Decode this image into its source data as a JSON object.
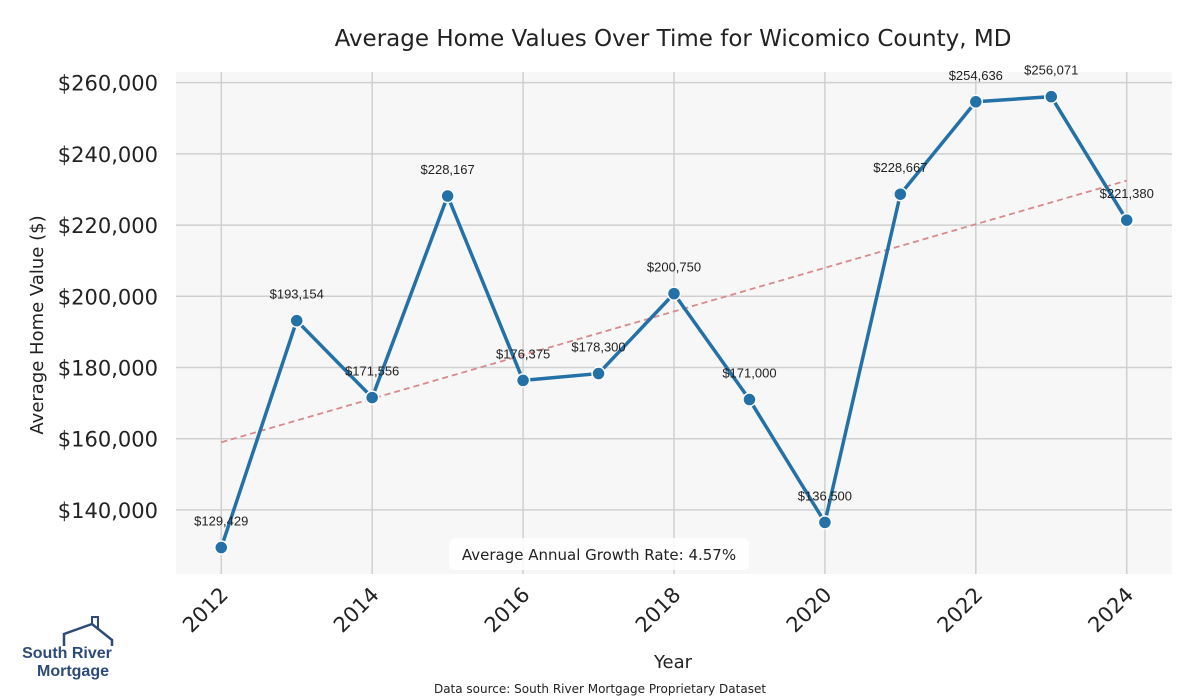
{
  "chart_data": {
    "type": "line",
    "title": "Average Home Values Over Time for Wicomico County, MD",
    "xlabel": "Year",
    "ylabel": "Average Home Value ($)",
    "x": [
      2012,
      2013,
      2014,
      2015,
      2016,
      2017,
      2018,
      2019,
      2020,
      2021,
      2022,
      2023,
      2024
    ],
    "series": [
      {
        "values": [
          129429,
          193154,
          171556,
          228167,
          176375,
          178300,
          200750,
          171000,
          136500,
          228667,
          254636,
          256071,
          221380
        ],
        "labels": [
          "$129,429",
          "$193,154",
          "$171,556",
          "$228,167",
          "$176,375",
          "$178,300",
          "$200,750",
          "$171,000",
          "$136,500",
          "$228,667",
          "$254,636",
          "$256,071",
          "$221,380"
        ],
        "color": "#2471a8"
      }
    ],
    "trendline": {
      "start_value": 159000,
      "end_value": 232500,
      "color": "#d98a8a",
      "style": "dashed"
    },
    "xticks": [
      "2012",
      "2014",
      "2016",
      "2018",
      "2020",
      "2022",
      "2024"
    ],
    "xtick_values": [
      2012,
      2014,
      2016,
      2018,
      2020,
      2022,
      2024
    ],
    "yticks": [
      "$140,000",
      "$160,000",
      "$180,000",
      "$200,000",
      "$220,000",
      "$240,000",
      "$260,000"
    ],
    "ytick_values": [
      140000,
      160000,
      180000,
      200000,
      220000,
      240000,
      260000
    ],
    "xlim": [
      2011.4,
      2024.6
    ],
    "ylim": [
      122000,
      263000
    ],
    "grid": true,
    "background": "#f7f7f7",
    "annotation": "Average Annual Growth Rate: 4.57%"
  },
  "footer": {
    "source": "Data source: South River Mortgage Proprietary Dataset"
  },
  "logo": {
    "line1": "South River",
    "line2": "Mortgage",
    "color": "#2e4a7a"
  }
}
